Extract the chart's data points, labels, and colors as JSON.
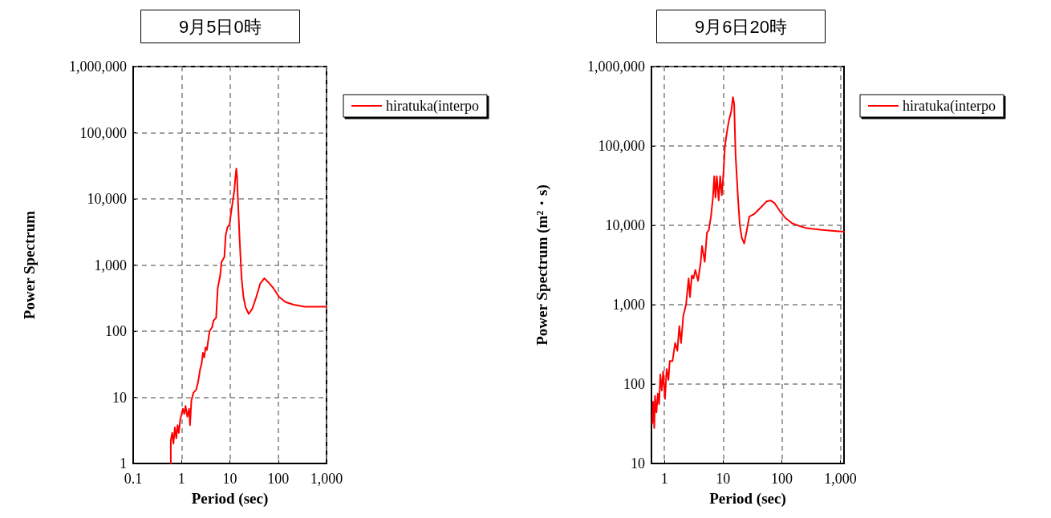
{
  "chart_data": [
    {
      "type": "line",
      "title": "9月5日0時",
      "xlabel": "Period (sec)",
      "ylabel": "Power Spectrum",
      "log": "xy",
      "grid": true,
      "legend": "top right",
      "marker": "none",
      "line_style": "solid",
      "xlim": [
        0.1,
        1000
      ],
      "xticks": [
        0.1,
        1,
        10,
        100,
        {
          "value": 1000,
          "label": "1,000"
        }
      ],
      "ylim": [
        1,
        1000000
      ],
      "yticks": [
        1,
        10,
        100,
        {
          "value": 1000,
          "label": "1,000"
        },
        {
          "value": 10000,
          "label": "10,000"
        },
        {
          "value": 100000,
          "label": "100,000"
        },
        {
          "value": 1000000,
          "label": "1,000,000"
        }
      ],
      "x": [
        0.6,
        0.6,
        0.64,
        0.68,
        0.73,
        0.78,
        0.83,
        0.88,
        0.94,
        1.07,
        1.14,
        1.21,
        1.32,
        1.43,
        1.5,
        1.6,
        1.77,
        2.01,
        2.2,
        2.44,
        2.6,
        2.77,
        2.95,
        3.14,
        3.35,
        3.8,
        4.3,
        4.6,
        5.2,
        5.6,
        6.3,
        6.7,
        7.7,
        8.2,
        8.9,
        9.9,
        10.5,
        11.5,
        12.4,
        12.9,
        13.6,
        14.1,
        14.5,
        15.9,
        17.5,
        19.1,
        21.2,
        24.6,
        29.1,
        35.3,
        42.5,
        51.5,
        62.4,
        80.8,
        104,
        142,
        209,
        349,
        1000
      ],
      "series": [
        {
          "name": "hiratuka(interpo",
          "color": "#ff0000",
          "values": [
            1,
            2.2,
            2.9,
            2,
            3.5,
            2.4,
            3.8,
            2.9,
            4.6,
            6.7,
            5.6,
            7.4,
            5.1,
            6.7,
            3.8,
            8.9,
            11.8,
            13,
            17,
            27,
            32,
            47,
            40,
            57,
            52,
            100,
            115,
            145,
            159,
            440,
            690,
            1100,
            1320,
            2800,
            3700,
            4100,
            5900,
            9300,
            13500,
            19500,
            28600,
            21500,
            12300,
            2500,
            630,
            330,
            228,
            182,
            218,
            330,
            525,
            630,
            550,
            440,
            330,
            275,
            251,
            234,
            234
          ]
        }
      ]
    },
    {
      "type": "line",
      "title": "9月6日20時",
      "xlabel": "Period (sec)",
      "ylabel": "Power Spectrum (m²・s)",
      "log": "xy",
      "grid": true,
      "legend": "top right",
      "marker": "none",
      "line_style": "solid",
      "xlim": [
        0.6,
        1150
      ],
      "xticks": [
        1,
        10,
        100,
        {
          "value": 1000,
          "label": "1,000"
        }
      ],
      "ylim": [
        10,
        1000000
      ],
      "yticks": [
        10,
        100,
        {
          "value": 1000,
          "label": "1,000"
        },
        {
          "value": 10000,
          "label": "10,000"
        },
        {
          "value": 100000,
          "label": "100,000"
        },
        {
          "value": 1000000,
          "label": "1,000,000"
        }
      ],
      "x": [
        0.62,
        0.64,
        0.67,
        0.69,
        0.73,
        0.77,
        0.81,
        0.85,
        0.9,
        0.95,
        1.02,
        1.09,
        1.17,
        1.23,
        1.37,
        1.52,
        1.66,
        1.79,
        1.92,
        2.09,
        2.33,
        2.58,
        2.72,
        2.93,
        3.12,
        3.36,
        3.74,
        4.15,
        4.37,
        4.86,
        5.3,
        5.7,
        6.2,
        6.7,
        7.05,
        7.4,
        7.8,
        8.4,
        8.9,
        9.5,
        10.2,
        10.7,
        11.7,
        12.6,
        13.7,
        14.7,
        15.4,
        16.3,
        17.8,
        19.2,
        20.8,
        22.9,
        25.3,
        28,
        34.3,
        44.5,
        55,
        64.4,
        75.4,
        93,
        115,
        150,
        194,
        267,
        455,
        770,
        1150
      ],
      "series": [
        {
          "name": "hiratuka(interpo",
          "color": "#ff0000",
          "values": [
            32,
            60,
            28,
            71,
            44,
            76,
            56,
            132,
            83,
            144,
            65,
            155,
            113,
            195,
            195,
            330,
            263,
            537,
            330,
            720,
            1000,
            2140,
            1250,
            2340,
            2140,
            2740,
            2000,
            3470,
            5500,
            3470,
            8100,
            8700,
            12900,
            22400,
            41500,
            22400,
            41500,
            20600,
            41500,
            24000,
            49000,
            98000,
            155000,
            212000,
            268000,
            411000,
            340000,
            77000,
            24000,
            10200,
            6960,
            5900,
            8700,
            12900,
            14000,
            17000,
            20000,
            20600,
            19000,
            15100,
            12400,
            10600,
            9900,
            9200,
            8800,
            8500,
            8300
          ]
        }
      ]
    }
  ]
}
